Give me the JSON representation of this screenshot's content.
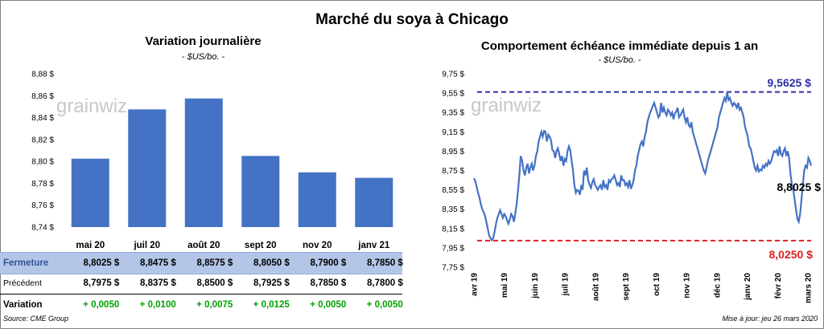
{
  "title": "Marché du soya à Chicago",
  "left_panel": {
    "title": "Variation  journalière",
    "subtitle": "- $US/bo. -",
    "watermark": "grainwiz",
    "rows": {
      "fermeture": {
        "label": "Fermeture",
        "values": [
          "8,8025  $",
          "8,8475  $",
          "8,8575  $",
          "8,8050  $",
          "8,7900  $",
          "8,7850  $"
        ],
        "bg": "#b4c6e7",
        "label_color": "#2f5597"
      },
      "precedent": {
        "label": "Précédent",
        "values": [
          "8,7975  $",
          "8,8375  $",
          "8,8500  $",
          "8,7925  $",
          "8,7850  $",
          "8,7800  $"
        ]
      },
      "variation": {
        "label": "Variation",
        "values": [
          "+ 0,0050",
          "+ 0,0100",
          "+ 0,0075",
          "+ 0,0125",
          "+ 0,0050",
          "+ 0,0050"
        ],
        "color": "#00a000"
      }
    }
  },
  "right_panel": {
    "title": "Comportement  échéance immédiate depuis 1 an",
    "subtitle": "- $US/bo. -",
    "watermark": "grainwiz",
    "high_label": "9,5625  $",
    "low_label": "8,0250  $",
    "last_label": "8,8025 $",
    "high_color": "#2e2ea8",
    "low_color": "#e02020"
  },
  "footer": {
    "source": "Source: CME Group",
    "updated": "Mise à jour: jeu 26 mars 2020"
  },
  "chart_data": [
    {
      "type": "bar",
      "title": "Variation  journalière",
      "subtitle": "- $US/bo. -",
      "categories": [
        "mai 20",
        "juil 20",
        "août 20",
        "sept 20",
        "nov 20",
        "janv 21"
      ],
      "values": [
        8.8025,
        8.8475,
        8.8575,
        8.805,
        8.79,
        8.785
      ],
      "ylim": [
        8.74,
        8.88
      ],
      "yticks": [
        "8,74 $",
        "8,76 $",
        "8,78 $",
        "8,80 $",
        "8,82 $",
        "8,84 $",
        "8,86 $",
        "8,88 $"
      ],
      "color": "#4472c4",
      "grid": false
    },
    {
      "type": "line",
      "title": "Comportement  échéance immédiate depuis 1 an",
      "subtitle": "- $US/bo. -",
      "ylim": [
        7.75,
        9.75
      ],
      "yticks": [
        "7,75 $",
        "7,95 $",
        "8,15 $",
        "8,35 $",
        "8,55 $",
        "8,75 $",
        "8,95 $",
        "9,15 $",
        "9,35 $",
        "9,55 $",
        "9,75 $"
      ],
      "xticks": [
        "avr 19",
        "mai 19",
        "juin 19",
        "juil 19",
        "août 19",
        "sept 19",
        "oct 19",
        "nov 19",
        "déc 19",
        "janv 20",
        "févr 20",
        "mars 20"
      ],
      "high": 9.5625,
      "low": 8.025,
      "color": "#4472c4",
      "series": [
        {
          "values": [
            8.67,
            8.64,
            8.58,
            8.52,
            8.47,
            8.4,
            8.35,
            8.32,
            8.28,
            8.22,
            8.15,
            8.08,
            8.05,
            8.03,
            8.05,
            8.12,
            8.2,
            8.26,
            8.3,
            8.34,
            8.3,
            8.26,
            8.3,
            8.28,
            8.24,
            8.2,
            8.24,
            8.3,
            8.28,
            8.22,
            8.3,
            8.4,
            8.54,
            8.7,
            8.9,
            8.85,
            8.75,
            8.7,
            8.78,
            8.82,
            8.72,
            8.78,
            8.82,
            8.75,
            8.8,
            8.9,
            8.95,
            9.05,
            9.1,
            9.15,
            9.1,
            9.16,
            9.15,
            9.05,
            9.12,
            9.1,
            9.06,
            8.96,
            8.95,
            8.88,
            8.95,
            8.98,
            8.92,
            8.85,
            8.9,
            8.8,
            8.87,
            8.85,
            8.95,
            9.0,
            8.96,
            8.85,
            8.75,
            8.6,
            8.52,
            8.55,
            8.54,
            8.5,
            8.6,
            8.55,
            8.75,
            8.7,
            8.78,
            8.65,
            8.6,
            8.57,
            8.63,
            8.66,
            8.6,
            8.58,
            8.55,
            8.58,
            8.6,
            8.55,
            8.65,
            8.58,
            8.6,
            8.55,
            8.65,
            8.63,
            8.66,
            8.67,
            8.7,
            8.65,
            8.6,
            8.62,
            8.58,
            8.7,
            8.65,
            8.65,
            8.6,
            8.62,
            8.58,
            8.65,
            8.56,
            8.6,
            8.65,
            8.75,
            8.8,
            8.9,
            8.96,
            9.02,
            9.05,
            9.0,
            9.1,
            9.15,
            9.25,
            9.3,
            9.35,
            9.38,
            9.42,
            9.45,
            9.4,
            9.35,
            9.3,
            9.32,
            9.45,
            9.35,
            9.4,
            9.35,
            9.32,
            9.38,
            9.36,
            9.32,
            9.35,
            9.28,
            9.34,
            9.36,
            9.4,
            9.3,
            9.32,
            9.35,
            9.38,
            9.3,
            9.25,
            9.3,
            9.22,
            9.2,
            9.25,
            9.15,
            9.1,
            9.05,
            9.0,
            8.95,
            8.9,
            8.85,
            8.8,
            8.75,
            8.72,
            8.78,
            8.85,
            8.9,
            8.95,
            9.0,
            9.05,
            9.1,
            9.15,
            9.2,
            9.3,
            9.35,
            9.4,
            9.45,
            9.5,
            9.47,
            9.56,
            9.48,
            9.5,
            9.45,
            9.42,
            9.45,
            9.43,
            9.4,
            9.45,
            9.38,
            9.4,
            9.35,
            9.3,
            9.2,
            9.15,
            9.1,
            9.0,
            8.98,
            8.92,
            8.85,
            8.78,
            8.75,
            8.8,
            8.74,
            8.76,
            8.75,
            8.8,
            8.78,
            8.82,
            8.8,
            8.85,
            8.82,
            8.85,
            8.9,
            8.95,
            8.94,
            8.96,
            8.9,
            9.0,
            8.92,
            8.9,
            8.95,
            8.98,
            8.9,
            8.95,
            8.88,
            8.72,
            8.6,
            8.55,
            8.45,
            8.35,
            8.25,
            8.22,
            8.3,
            8.45,
            8.6,
            8.75,
            8.8,
            8.78,
            8.88,
            8.85,
            8.8
          ]
        }
      ]
    }
  ]
}
